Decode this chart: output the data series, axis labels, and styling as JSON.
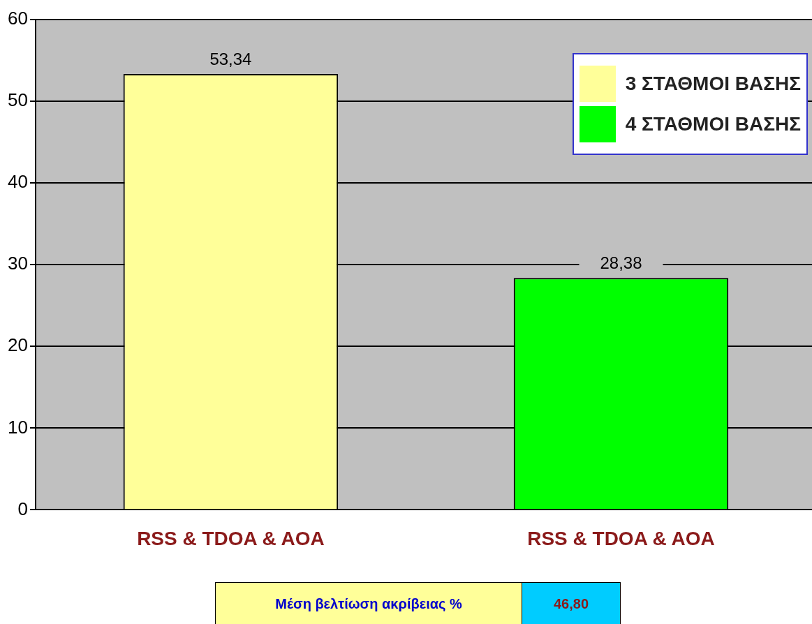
{
  "chart_data": {
    "type": "bar",
    "categories": [
      "RSS & TDOA & AOA",
      "RSS & TDOA & AOA"
    ],
    "series": [
      {
        "name": "3 ΣΤΑΘΜΟΙ ΒΑΣΗΣ",
        "color": "#ffff99",
        "values": [
          53.34,
          null
        ],
        "value_labels": [
          "53,34",
          null
        ]
      },
      {
        "name": "4 ΣΤΑΘΜΟΙ ΒΑΣΗΣ",
        "color": "#00ff00",
        "values": [
          null,
          28.38
        ],
        "value_labels": [
          null,
          "28,38"
        ]
      }
    ],
    "ylim": [
      0,
      60
    ],
    "yticks": [
      0,
      10,
      20,
      30,
      40,
      50,
      60
    ],
    "grid": "y",
    "legend": "top right",
    "annotations": [
      "Μέση βελτίωση ακρίβειας %",
      "46,80"
    ]
  }
}
